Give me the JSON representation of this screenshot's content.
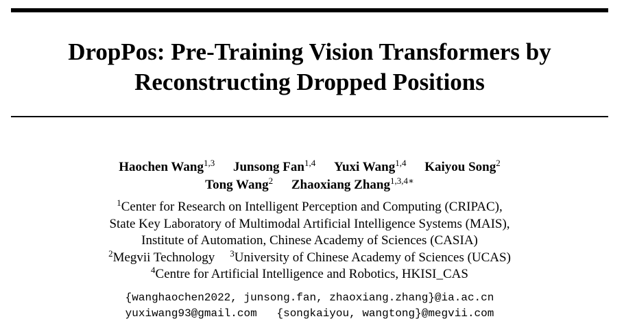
{
  "title": {
    "line1": "DropPos: Pre-Training Vision Transformers by",
    "line2": "Reconstructing Dropped Positions"
  },
  "authors": [
    {
      "name": "Haochen Wang",
      "affil": "1,3"
    },
    {
      "name": "Junsong Fan",
      "affil": "1,4"
    },
    {
      "name": "Yuxi Wang",
      "affil": "1,4"
    },
    {
      "name": "Kaiyou Song",
      "affil": "2"
    },
    {
      "name": "Tong Wang",
      "affil": "2"
    },
    {
      "name": "Zhaoxiang Zhang",
      "affil": "1,3,4∗"
    }
  ],
  "affiliations": {
    "a1_mark": "1",
    "a1_line1": "Center for Research on Intelligent Perception and Computing (CRIPAC),",
    "a1_line2": "State Key Laboratory of Multimodal Artificial Intelligence Systems (MAIS),",
    "a1_line3": "Institute of Automation, Chinese Academy of Sciences (CASIA)",
    "a2_mark": "2",
    "a2": "Megvii Technology",
    "a3_mark": "3",
    "a3": "University of Chinese Academy of Sciences (UCAS)",
    "a4_mark": "4",
    "a4": "Centre for Artificial Intelligence and Robotics, HKISI_CAS"
  },
  "emails": {
    "line1": "{wanghaochen2022, junsong.fan, zhaoxiang.zhang}@ia.ac.cn",
    "line2": "yuxiwang93@gmail.com   {songkaiyou, wangtong}@megvii.com"
  }
}
